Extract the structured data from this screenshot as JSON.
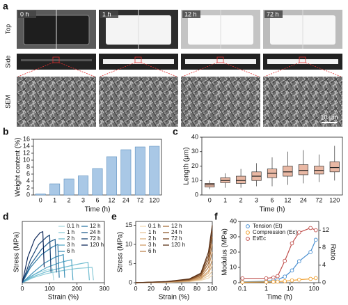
{
  "panel_a": {
    "label": "a",
    "rows": [
      "Top",
      "Side",
      "SEM"
    ],
    "times": [
      "0 h",
      "1 h",
      "12 h",
      "72 h"
    ],
    "scale_bar": "10 μm"
  },
  "chart_data": [
    {
      "label": "b",
      "type": "bar",
      "categories": [
        "0",
        "1",
        "2",
        "3",
        "6",
        "12",
        "24",
        "72",
        "120"
      ],
      "values": [
        0.3,
        3.2,
        4.6,
        5.5,
        7.6,
        11,
        13,
        13.8,
        14
      ],
      "color": "#a9c8e6",
      "xlabel": "Time (h)",
      "ylabel": "Weight content (%)",
      "ylim": [
        0,
        16
      ],
      "yticks": [
        0,
        2,
        4,
        6,
        8,
        10,
        12,
        14,
        16
      ]
    },
    {
      "label": "c",
      "type": "box",
      "categories": [
        "0",
        "1",
        "2",
        "3",
        "6",
        "12",
        "24",
        "72",
        "120"
      ],
      "whisker_low": [
        4,
        5,
        5,
        6,
        6,
        7,
        8,
        9,
        10
      ],
      "q1": [
        5.5,
        8.5,
        8,
        10,
        12,
        13,
        14,
        14.5,
        16
      ],
      "median": [
        7,
        10,
        10,
        13,
        15,
        16,
        17,
        17,
        19
      ],
      "q3": [
        8,
        12,
        13,
        16,
        18,
        20,
        21,
        20,
        23
      ],
      "whisker_high": [
        10,
        15,
        18,
        22,
        26,
        30,
        31,
        28,
        34
      ],
      "color": "#e9b8a4",
      "xlabel": "Time (h)",
      "ylabel": "Length (μm)",
      "ylim": [
        0,
        40
      ],
      "yticks": [
        0,
        10,
        20,
        30,
        40
      ]
    },
    {
      "label": "d",
      "type": "line",
      "xlabel": "Strain (%)",
      "ylabel": "Stress (MPa)",
      "xlim": [
        0,
        300
      ],
      "xticks": [
        0,
        100,
        200,
        300
      ],
      "ylim": [
        0,
        1.2
      ],
      "legend": "upper right",
      "series": [
        {
          "name": "0.1 h",
          "color": "#a8d8e0",
          "x": [
            0,
            30,
            60,
            90,
            110,
            115
          ],
          "values": [
            0,
            0.12,
            0.2,
            0.25,
            0.27,
            0.05
          ]
        },
        {
          "name": "1 h",
          "color": "#8ccbd8",
          "x": [
            0,
            40,
            90,
            150,
            200,
            255,
            260
          ],
          "values": [
            0,
            0.1,
            0.18,
            0.24,
            0.28,
            0.3,
            0.05
          ]
        },
        {
          "name": "2 h",
          "color": "#6fbcd0",
          "x": [
            0,
            40,
            90,
            150,
            200,
            240,
            245
          ],
          "values": [
            0,
            0.12,
            0.22,
            0.3,
            0.36,
            0.4,
            0.05
          ]
        },
        {
          "name": "3 h",
          "color": "#55a8c6",
          "x": [
            0,
            40,
            90,
            140,
            180,
            185
          ],
          "values": [
            0,
            0.15,
            0.3,
            0.4,
            0.45,
            0.05
          ]
        },
        {
          "name": "6 h",
          "color": "#3f92b8",
          "x": [
            0,
            40,
            80,
            120,
            150,
            155
          ],
          "values": [
            0,
            0.2,
            0.38,
            0.5,
            0.55,
            0.1
          ]
        },
        {
          "name": "12 h",
          "color": "#2f7aa6",
          "x": [
            0,
            30,
            70,
            110,
            130,
            135
          ],
          "values": [
            0,
            0.3,
            0.55,
            0.7,
            0.75,
            0.1
          ]
        },
        {
          "name": "24 h",
          "color": "#245f8e",
          "x": [
            0,
            30,
            70,
            100,
            120,
            125
          ],
          "values": [
            0,
            0.35,
            0.65,
            0.8,
            0.85,
            0.2
          ]
        },
        {
          "name": "72 h",
          "color": "#1b4574",
          "x": [
            0,
            30,
            60,
            90,
            100,
            105
          ],
          "values": [
            0,
            0.45,
            0.75,
            0.9,
            0.93,
            0.2
          ]
        },
        {
          "name": "120 h",
          "color": "#10295a",
          "x": [
            0,
            20,
            45,
            65,
            75,
            80
          ],
          "values": [
            0,
            0.5,
            0.85,
            0.98,
            1.0,
            0.3
          ]
        }
      ]
    },
    {
      "label": "e",
      "type": "line",
      "xlabel": "Strain (%)",
      "ylabel": "Stress (MPa)",
      "xlim": [
        0,
        100
      ],
      "xticks": [
        0,
        20,
        40,
        60,
        80,
        100
      ],
      "ylim": [
        0,
        16
      ],
      "yticks": [
        0,
        5,
        10,
        15
      ],
      "legend": "upper left",
      "series": [
        {
          "name": "0.1 h",
          "color": "#f0d9b5",
          "x": [
            0,
            40,
            70,
            85,
            95,
            100
          ],
          "values": [
            0,
            0.1,
            0.3,
            0.6,
            1.2,
            2
          ]
        },
        {
          "name": "1 h",
          "color": "#e8c79a",
          "x": [
            0,
            40,
            70,
            85,
            95,
            100
          ],
          "values": [
            0,
            0.1,
            0.35,
            0.8,
            1.8,
            3
          ]
        },
        {
          "name": "2 h",
          "color": "#ddb27e",
          "x": [
            0,
            40,
            70,
            85,
            95,
            100
          ],
          "values": [
            0,
            0.15,
            0.4,
            1,
            2.5,
            4.5
          ]
        },
        {
          "name": "3 h",
          "color": "#cf9c66",
          "x": [
            0,
            40,
            70,
            85,
            95,
            100
          ],
          "values": [
            0,
            0.15,
            0.5,
            1.2,
            3,
            6
          ]
        },
        {
          "name": "6 h",
          "color": "#bd8650",
          "x": [
            0,
            40,
            70,
            85,
            95,
            100
          ],
          "values": [
            0,
            0.2,
            0.6,
            1.5,
            4,
            8
          ]
        },
        {
          "name": "12 h",
          "color": "#a8703d",
          "x": [
            0,
            40,
            70,
            85,
            95,
            100
          ],
          "values": [
            0,
            0.2,
            0.7,
            1.8,
            5,
            10
          ]
        },
        {
          "name": "24 h",
          "color": "#8f5a2e",
          "x": [
            0,
            40,
            70,
            85,
            95,
            100
          ],
          "values": [
            0,
            0.25,
            0.8,
            2,
            6,
            12
          ]
        },
        {
          "name": "72 h",
          "color": "#754522",
          "x": [
            0,
            40,
            70,
            85,
            95,
            100
          ],
          "values": [
            0,
            0.3,
            0.9,
            2.3,
            7,
            13.5
          ]
        },
        {
          "name": "120 h",
          "color": "#5a3218",
          "x": [
            0,
            40,
            70,
            85,
            95,
            100
          ],
          "values": [
            0,
            0.3,
            1,
            2.5,
            8,
            15
          ]
        }
      ]
    },
    {
      "label": "f",
      "type": "line",
      "log_x": true,
      "xlabel": "Time (h)",
      "ylabel": "Modulus (MPa)",
      "y2label": "Ratio",
      "legend": "upper left",
      "x": [
        0.1,
        1,
        2,
        3,
        6,
        12,
        24,
        72,
        120
      ],
      "xlim": [
        0.08,
        160
      ],
      "xticks": [
        0.1,
        1,
        10,
        100
      ],
      "ylim": [
        0,
        40
      ],
      "yticks": [
        0,
        10,
        20,
        30,
        40
      ],
      "y2lim": [
        0,
        14
      ],
      "y2ticks": [
        0,
        4,
        8,
        12
      ],
      "series": [
        {
          "name": "Tension (Et)",
          "color": "#4a8fd0",
          "values": [
            0.5,
            1,
            1.5,
            2,
            4,
            8,
            14,
            20,
            28
          ]
        },
        {
          "name": "Compression (Ec)",
          "color": "#f0a030",
          "values": [
            0.3,
            0.5,
            0.6,
            0.7,
            1,
            1.5,
            2,
            2.5,
            3
          ]
        },
        {
          "name": "Et/Ec",
          "color": "#c0504d",
          "axis": "y2",
          "values": [
            1,
            1,
            1.2,
            1.5,
            5,
            9,
            11.5,
            12.5,
            12
          ]
        }
      ]
    }
  ]
}
